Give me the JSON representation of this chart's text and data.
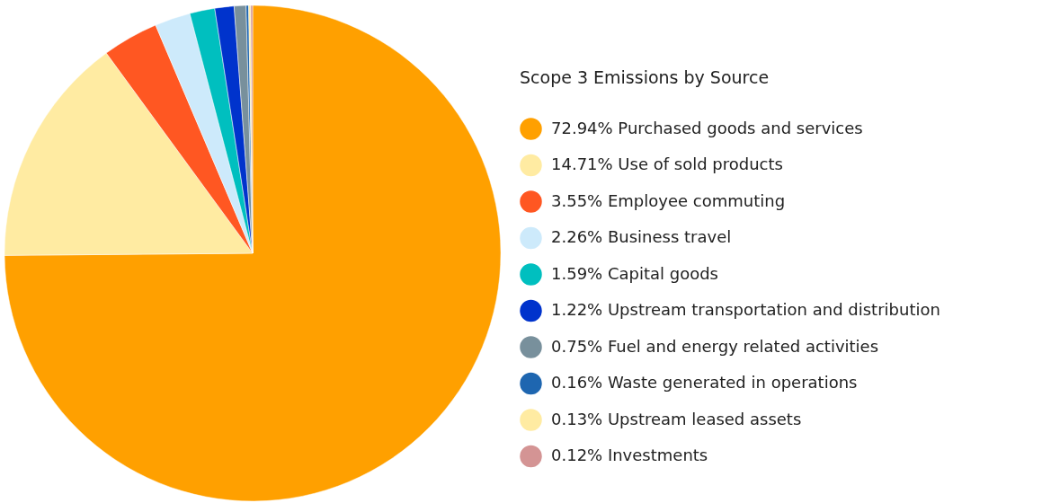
{
  "chart_data": {
    "type": "pie",
    "legend_title": "Scope 3 Emissions by Source",
    "categories": [
      "Purchased goods and services",
      "Use of sold products",
      "Employee commuting",
      "Business travel",
      "Capital goods",
      "Upstream transportation and distribution",
      "Fuel and energy related activities",
      "Waste generated in operations",
      "Upstream leased assets",
      "Investments"
    ],
    "values": [
      72.94,
      14.71,
      3.55,
      2.26,
      1.59,
      1.22,
      0.75,
      0.16,
      0.13,
      0.12
    ],
    "value_labels": [
      "72.94%",
      "14.71%",
      "3.55%",
      "2.26%",
      "1.59%",
      "1.22%",
      "0.75%",
      "0.16%",
      "0.13%",
      "0.12%"
    ],
    "colors": [
      "#ffa000",
      "#ffeba2",
      "#ff5722",
      "#cdeafb",
      "#00bfbf",
      "#0033cc",
      "#78909c",
      "#1e66b0",
      "#ffeba2",
      "#d49494"
    ],
    "legend": "right"
  }
}
